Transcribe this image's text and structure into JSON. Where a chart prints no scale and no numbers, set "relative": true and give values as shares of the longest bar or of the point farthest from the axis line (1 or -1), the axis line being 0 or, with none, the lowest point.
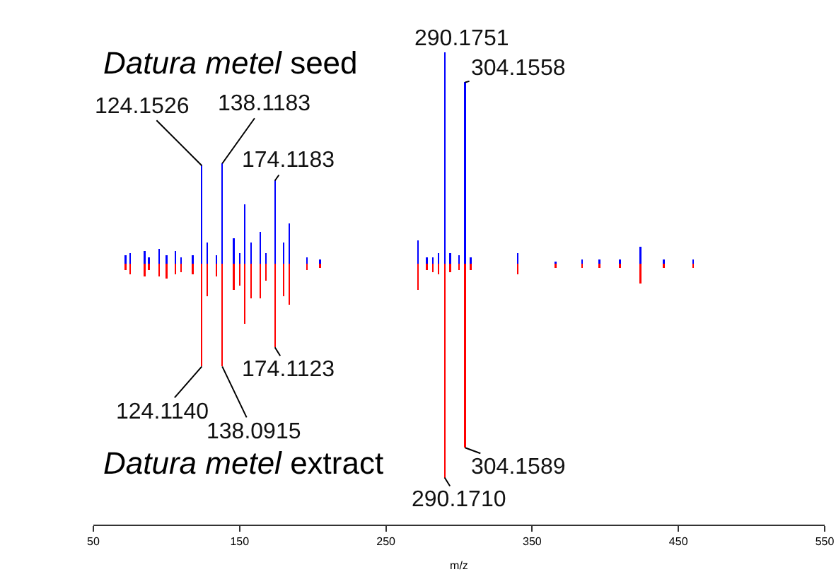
{
  "chart_data": {
    "type": "bar",
    "relative": true,
    "xlabel": "m/z",
    "xlim": [
      50,
      550
    ],
    "xticks": [
      50,
      150,
      250,
      350,
      450,
      550
    ],
    "grid": false,
    "tick_labels": "x",
    "x": [
      72,
      75,
      85,
      88,
      95,
      100,
      106,
      110,
      118,
      124.15,
      128,
      134,
      138.12,
      146,
      150,
      153.5,
      158,
      164,
      168,
      174.12,
      180,
      184,
      196,
      205,
      272,
      278,
      282,
      286,
      290.17,
      294,
      300,
      304.16,
      308,
      340,
      366,
      384,
      396,
      410,
      424,
      440,
      460
    ],
    "series": [
      {
        "color": "#0000ff",
        "values": [
          0.04,
          0.05,
          0.06,
          0.03,
          0.07,
          0.04,
          0.06,
          0.03,
          0.04,
          0.46,
          0.1,
          0.04,
          0.47,
          0.12,
          0.05,
          0.28,
          0.1,
          0.15,
          0.05,
          0.39,
          0.1,
          0.19,
          0.03,
          0.02,
          0.11,
          0.03,
          0.03,
          0.05,
          0.99,
          0.05,
          0.04,
          0.85,
          0.03,
          0.05,
          0.01,
          0.02,
          0.02,
          0.02,
          0.08,
          0.02,
          0.02
        ]
      },
      {
        "color": "#ff0000",
        "values": [
          -0.03,
          -0.05,
          -0.06,
          -0.03,
          -0.06,
          -0.07,
          -0.05,
          -0.04,
          -0.05,
          -0.48,
          -0.15,
          -0.06,
          -0.48,
          -0.12,
          -0.1,
          -0.28,
          -0.16,
          -0.16,
          -0.08,
          -0.39,
          -0.15,
          -0.19,
          -0.03,
          -0.02,
          -0.12,
          -0.03,
          -0.04,
          -0.05,
          -1,
          -0.04,
          -0.03,
          -0.86,
          -0.03,
          -0.05,
          -0.02,
          -0.02,
          -0.02,
          -0.02,
          -0.09,
          -0.02,
          -0.02
        ]
      }
    ],
    "annotations": [
      "*Datura metel* seed",
      "*Datura metel* extract",
      {
        "text": "124.1526",
        "x": 124.15,
        "y": 0.46
      },
      {
        "text": "138.1183",
        "x": 138.12,
        "y": 0.47
      },
      {
        "text": "174.1183",
        "x": 174.12,
        "y": 0.39
      },
      {
        "text": "290.1751",
        "x": 290.17,
        "y": 0.99
      },
      {
        "text": "304.1558",
        "x": 304.16,
        "y": 0.85
      },
      {
        "text": "124.1140",
        "x": 124.15,
        "y": -0.48
      },
      {
        "text": "138.0915",
        "x": 138.12,
        "y": -0.48
      },
      {
        "text": "174.1123",
        "x": 174.12,
        "y": -0.39
      },
      {
        "text": "304.1589",
        "x": 304.16,
        "y": -0.86
      },
      {
        "text": "290.1710",
        "x": 290.17,
        "y": -1
      }
    ]
  }
}
